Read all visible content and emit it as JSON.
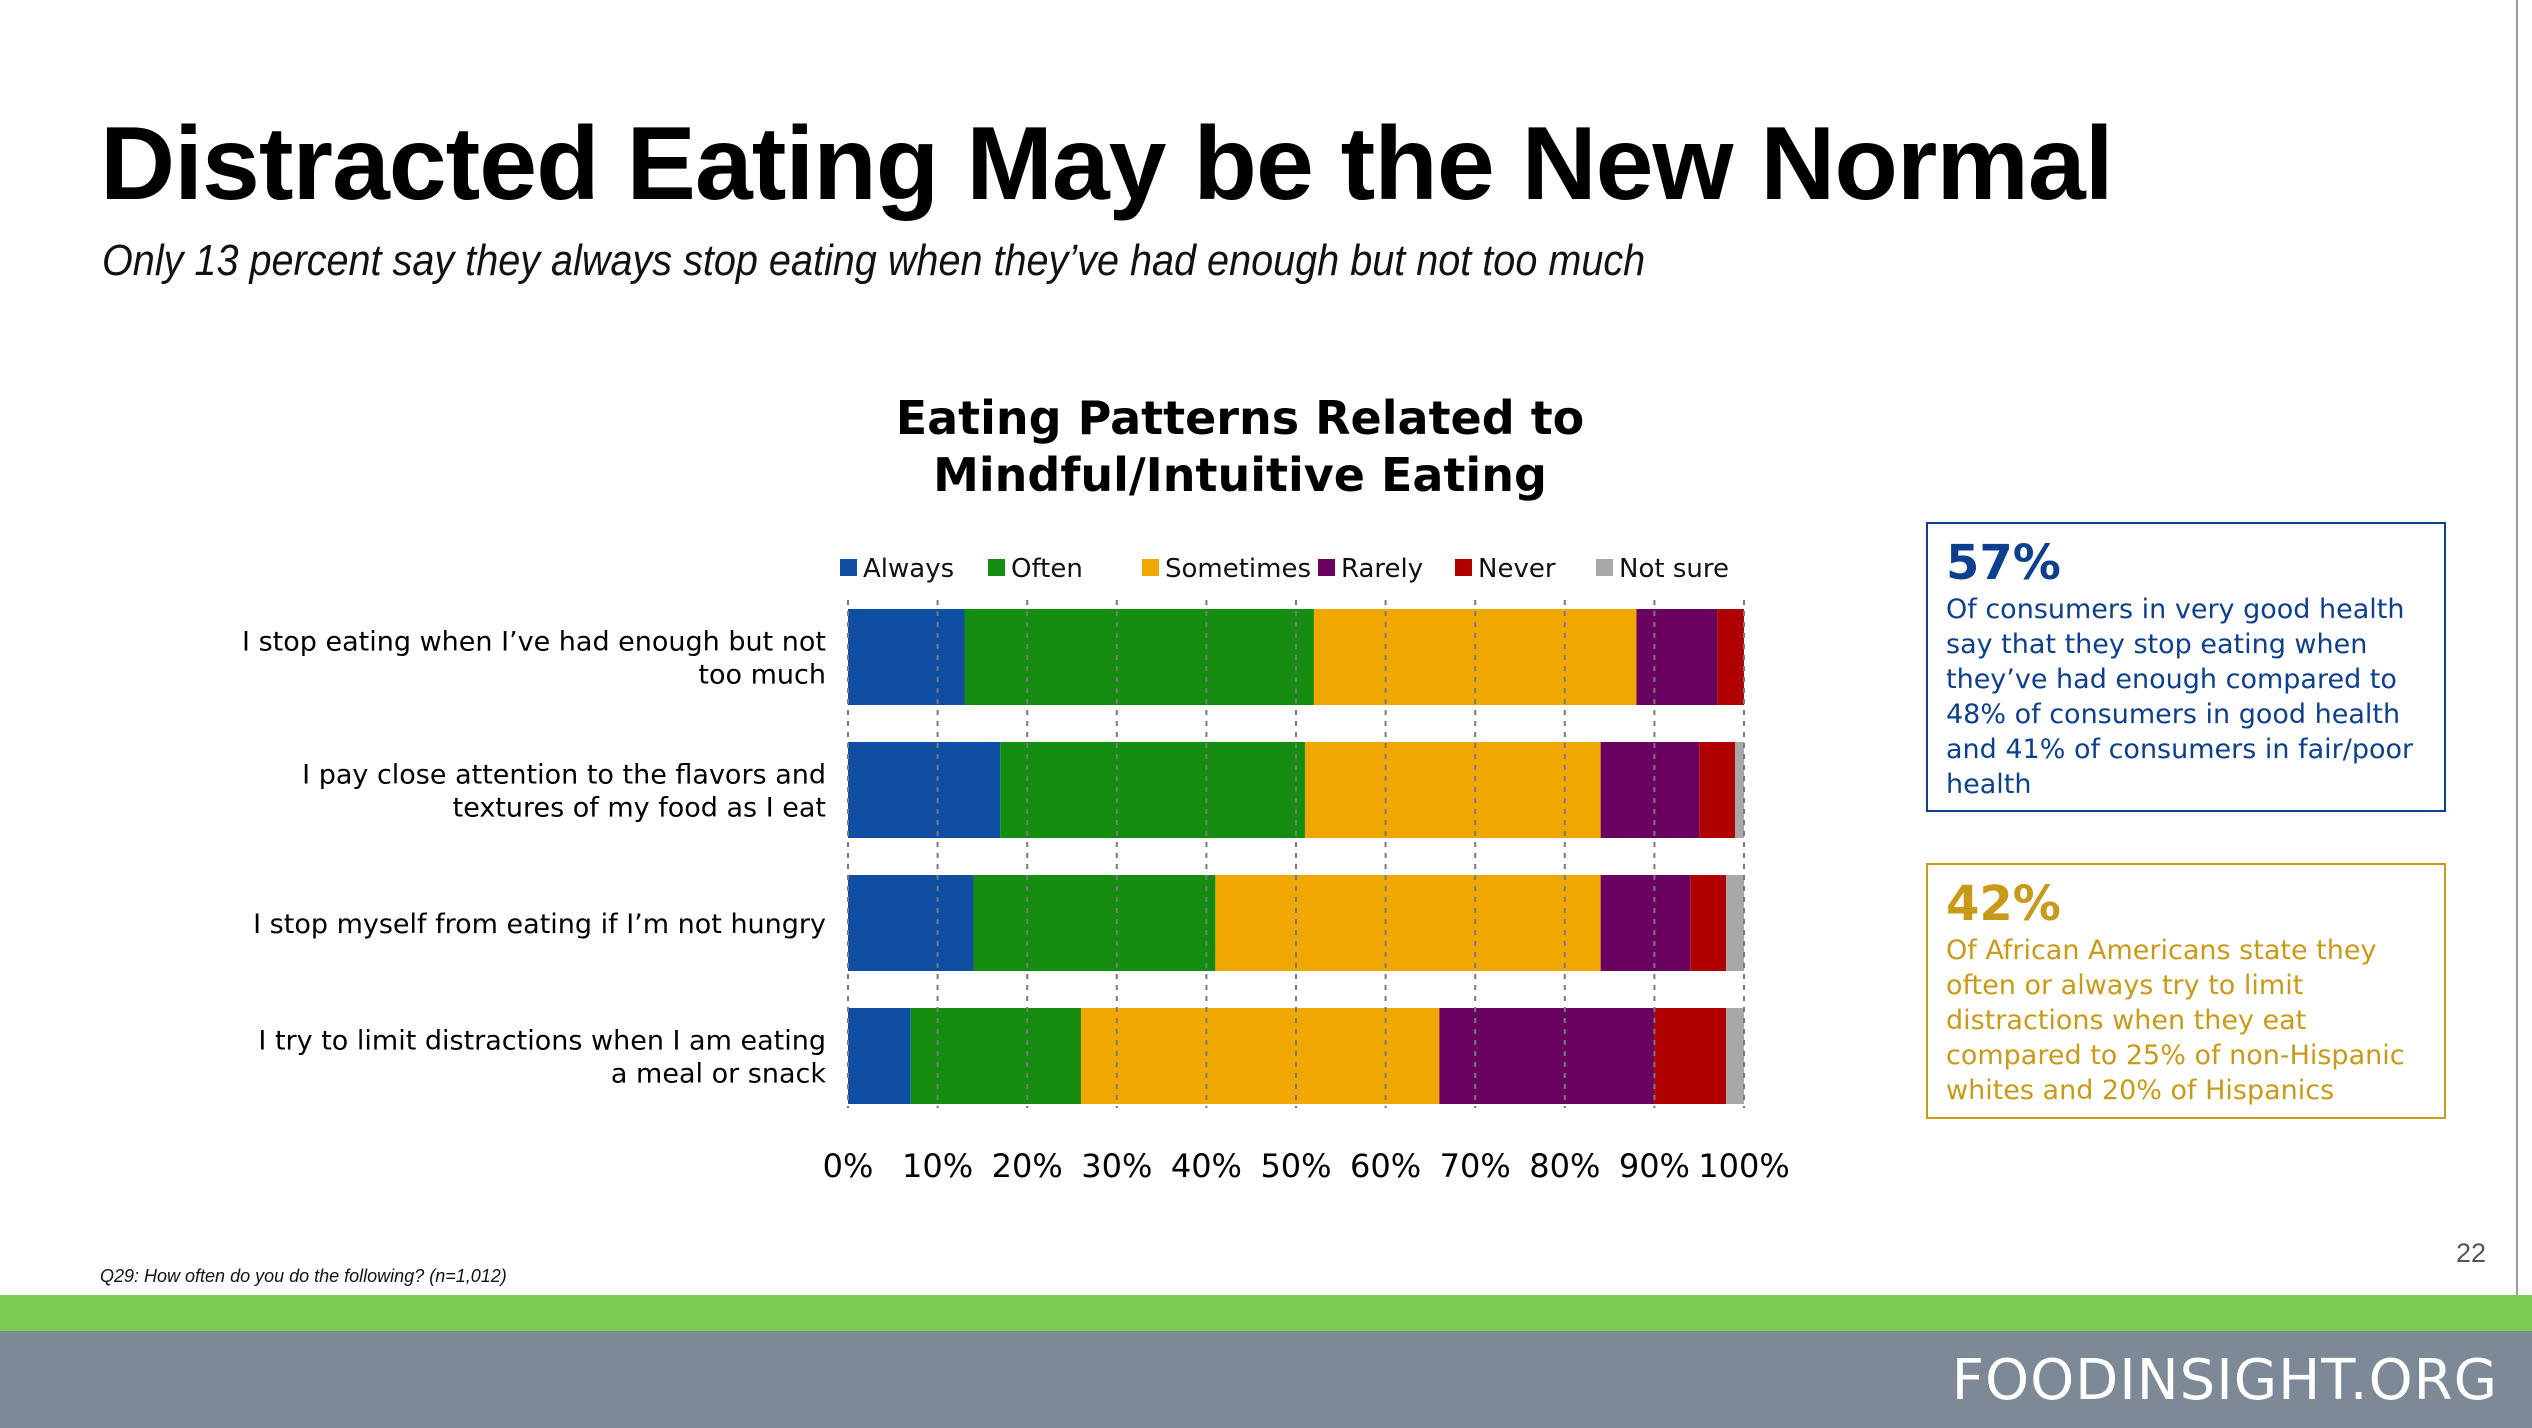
{
  "page": {
    "title": "Distracted Eating May be the New Normal",
    "subtitle": "Only 13 percent say they always stop eating when they’ve had enough but not too much",
    "footnote": "Q29: How often do you do the following? (n=1,012)",
    "page_number": "22",
    "brand": "FOODINSIGHT.ORG"
  },
  "callouts": [
    {
      "stat": "57%",
      "text": "Of consumers in very good health say that they stop eating when they’ve had enough compared to 48% of consumers in good health and 41% of consumers in fair/poor health",
      "color": "#0d3f8f"
    },
    {
      "stat": "42%",
      "text": "Of African Americans state they often or always try to limit distractions when they eat compared to 25% of non-Hispanic whites and 20% of Hispanics",
      "color": "#c99a1a"
    }
  ],
  "chart_data": {
    "type": "bar",
    "orientation": "horizontal",
    "stacked": true,
    "title": "Eating Patterns Related to Mindful/Intuitive Eating",
    "categories": [
      [
        "I stop eating when I’ve had enough but not",
        "too much"
      ],
      [
        "I pay close attention to the flavors and",
        "textures of my food as I eat"
      ],
      [
        "I stop myself from eating if I’m not hungry"
      ],
      [
        "I try to limit distractions when I am eating",
        "a meal or snack"
      ]
    ],
    "series": [
      {
        "name": "Always",
        "color": "#0f4ea3",
        "values": [
          13,
          17,
          14,
          7
        ]
      },
      {
        "name": "Often",
        "color": "#138c0f",
        "values": [
          39,
          34,
          27,
          19
        ]
      },
      {
        "name": "Sometimes",
        "color": "#f0a800",
        "values": [
          36,
          33,
          43,
          40
        ]
      },
      {
        "name": "Rarely",
        "color": "#6a0060",
        "values": [
          9,
          11,
          10,
          24
        ]
      },
      {
        "name": "Never",
        "color": "#b00000",
        "values": [
          3,
          4,
          4,
          8
        ]
      },
      {
        "name": "Not sure",
        "color": "#a8a8a8",
        "values": [
          0,
          1,
          2,
          2
        ]
      }
    ],
    "xlim": [
      0,
      100
    ],
    "xticks": [
      "0%",
      "10%",
      "20%",
      "30%",
      "40%",
      "50%",
      "60%",
      "70%",
      "80%",
      "90%",
      "100%"
    ],
    "grid": "vertical dashed",
    "legend": "top"
  }
}
